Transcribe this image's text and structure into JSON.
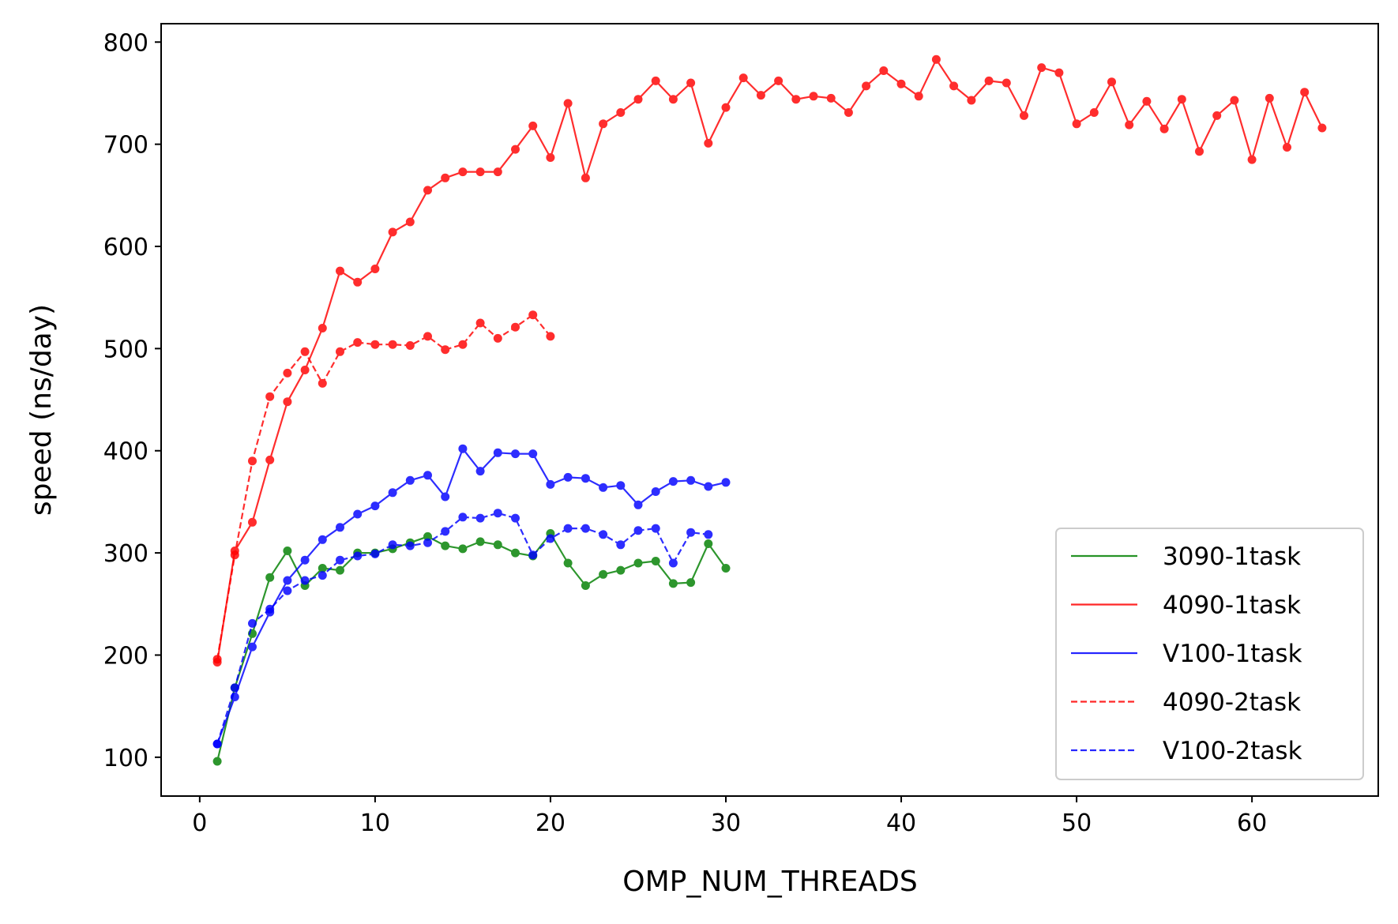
{
  "chart_data": {
    "type": "line",
    "xlabel": "OMP_NUM_THREADS",
    "ylabel": "speed (ns/day)",
    "xlim": [
      -2.2,
      67.2
    ],
    "ylim": [
      62,
      818
    ],
    "xticks": [
      0,
      10,
      20,
      30,
      40,
      50,
      60
    ],
    "yticks": [
      100,
      200,
      300,
      400,
      500,
      600,
      700,
      800
    ],
    "grid": false,
    "legend_position": "lower-right",
    "series": [
      {
        "name": "3090-1task",
        "color": "#008000",
        "dash": "solid",
        "x": [
          1,
          2,
          3,
          4,
          5,
          6,
          7,
          8,
          9,
          10,
          11,
          12,
          13,
          14,
          15,
          16,
          17,
          18,
          19,
          20,
          21,
          22,
          23,
          24,
          25,
          26,
          27,
          28,
          29,
          30
        ],
        "y": [
          96,
          168,
          221,
          276,
          302,
          268,
          285,
          283,
          300,
          300,
          304,
          310,
          316,
          307,
          304,
          311,
          308,
          300,
          297,
          319,
          290,
          268,
          279,
          283,
          290,
          292,
          270,
          271,
          309,
          285
        ]
      },
      {
        "name": "4090-1task",
        "color": "#ff0000",
        "dash": "solid",
        "x": [
          1,
          2,
          3,
          4,
          5,
          6,
          7,
          8,
          9,
          10,
          11,
          12,
          13,
          14,
          15,
          16,
          17,
          18,
          19,
          20,
          21,
          22,
          23,
          24,
          25,
          26,
          27,
          28,
          29,
          30,
          31,
          32,
          33,
          34,
          35,
          36,
          37,
          38,
          39,
          40,
          41,
          42,
          43,
          44,
          45,
          46,
          47,
          48,
          49,
          50,
          51,
          52,
          53,
          54,
          55,
          56,
          57,
          58,
          59,
          60,
          61,
          62,
          63,
          64
        ],
        "y": [
          193,
          302,
          330,
          391,
          448,
          479,
          520,
          576,
          565,
          578,
          614,
          624,
          655,
          667,
          673,
          673,
          673,
          695,
          718,
          687,
          740,
          667,
          720,
          731,
          744,
          762,
          744,
          760,
          701,
          736,
          765,
          748,
          762,
          744,
          747,
          745,
          731,
          757,
          772,
          759,
          747,
          783,
          757,
          743,
          762,
          760,
          728,
          775,
          770,
          720,
          731,
          761,
          719,
          742,
          715,
          744,
          693,
          728,
          743,
          685,
          745,
          697,
          751,
          716
        ]
      },
      {
        "name": "V100-1task",
        "color": "#0000ff",
        "dash": "solid",
        "x": [
          1,
          2,
          3,
          4,
          5,
          6,
          7,
          8,
          9,
          10,
          11,
          12,
          13,
          14,
          15,
          16,
          17,
          18,
          19,
          20,
          21,
          22,
          23,
          24,
          25,
          26,
          27,
          28,
          29,
          30
        ],
        "y": [
          113,
          159,
          208,
          242,
          273,
          293,
          313,
          325,
          338,
          346,
          359,
          371,
          376,
          355,
          402,
          380,
          398,
          397,
          397,
          367,
          374,
          373,
          364,
          366,
          347,
          360,
          370,
          371,
          365,
          369
        ]
      },
      {
        "name": "4090-2task",
        "color": "#ff0000",
        "dash": "dashed",
        "x": [
          1,
          2,
          3,
          4,
          5,
          6,
          7,
          8,
          9,
          10,
          11,
          12,
          13,
          14,
          15,
          16,
          17,
          18,
          19,
          20
        ],
        "y": [
          196,
          298,
          390,
          453,
          476,
          497,
          466,
          497,
          506,
          504,
          504,
          503,
          512,
          499,
          504,
          525,
          510,
          521,
          533,
          512
        ]
      },
      {
        "name": "V100-2task",
        "color": "#0000ff",
        "dash": "dashed",
        "x": [
          1,
          2,
          3,
          4,
          5,
          6,
          7,
          8,
          9,
          10,
          11,
          12,
          13,
          14,
          15,
          16,
          17,
          18,
          19,
          20,
          21,
          22,
          23,
          24,
          25,
          26,
          27,
          28,
          29
        ],
        "y": [
          113,
          168,
          231,
          245,
          263,
          273,
          278,
          293,
          297,
          299,
          308,
          307,
          310,
          321,
          335,
          334,
          339,
          334,
          298,
          314,
          324,
          324,
          318,
          308,
          322,
          324,
          290,
          320,
          318
        ]
      }
    ]
  }
}
